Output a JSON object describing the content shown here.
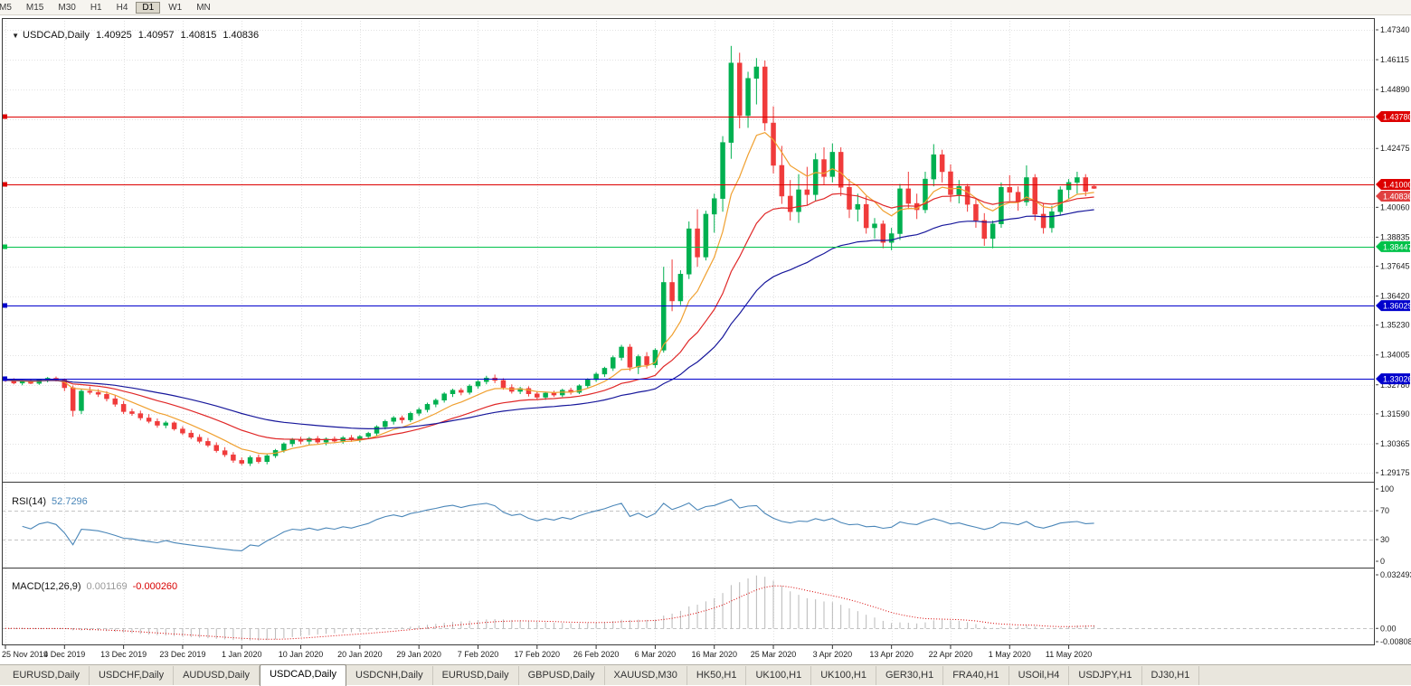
{
  "toolbar": {
    "timeframes": [
      "M5",
      "M15",
      "M30",
      "H1",
      "H4",
      "D1",
      "W1",
      "MN"
    ],
    "active": "D1"
  },
  "header": {
    "symbol": "USDCAD,Daily",
    "open": "1.40925",
    "high": "1.40957",
    "low": "1.40815",
    "close": "1.40836"
  },
  "indicators": {
    "rsi": {
      "label": "RSI(14)",
      "value": "52.7296",
      "scale": [
        {
          "label": "100",
          "value": 100
        },
        {
          "label": "70",
          "value": 70
        },
        {
          "label": "30",
          "value": 30
        },
        {
          "label": "0",
          "value": 0
        }
      ]
    },
    "macd": {
      "label": "MACD(12,26,9)",
      "value_main": "0.001169",
      "value_signal": "-0.000260",
      "scale": [
        {
          "label": "0.032493",
          "value": 0.032493
        },
        {
          "label": "0.00",
          "value": 0
        },
        {
          "label": "-0.00808",
          "value": -0.00808
        }
      ]
    }
  },
  "price_scale": {
    "labels": [
      "1.47340",
      "1.46115",
      "1.44890",
      "1.42475",
      "1.40060",
      "1.38835",
      "1.37645",
      "1.36420",
      "1.35230",
      "1.34005",
      "1.32780",
      "1.31590",
      "1.30365",
      "1.29175"
    ],
    "markers": [
      {
        "label": "1.43780",
        "value": 1.4378,
        "color": "#dd0000",
        "line": true
      },
      {
        "label": "1.41000",
        "value": 1.41,
        "color": "#dd0000",
        "line": true
      },
      {
        "label": "1.40836",
        "value": 1.40836,
        "color": "#e04040",
        "line": false,
        "type": "bid"
      },
      {
        "label": "1.38447",
        "value": 1.38447,
        "color": "#00c24a",
        "line": true
      },
      {
        "label": "1.36029",
        "value": 1.36029,
        "color": "#0000cc",
        "line": true
      },
      {
        "label": "1.33026",
        "value": 1.33026,
        "color": "#0000cc",
        "line": true
      }
    ]
  },
  "x_axis": {
    "labels": [
      "25 Nov 2019",
      "4 Dec 2019",
      "13 Dec 2019",
      "23 Dec 2019",
      "1 Jan 2020",
      "10 Jan 2020",
      "20 Jan 2020",
      "29 Jan 2020",
      "7 Feb 2020",
      "17 Feb 2020",
      "26 Feb 2020",
      "6 Mar 2020",
      "16 Mar 2020",
      "25 Mar 2020",
      "3 Apr 2020",
      "13 Apr 2020",
      "22 Apr 2020",
      "1 May 2020",
      "11 May 2020"
    ],
    "candles_per_label": 7
  },
  "tabs": {
    "items": [
      "EURUSD,Daily",
      "USDCHF,Daily",
      "AUDUSD,Daily",
      "USDCAD,Daily",
      "USDCNH,Daily",
      "EURUSD,Daily",
      "GBPUSD,Daily",
      "XAUUSD,M30",
      "HK50,H1",
      "UK100,H1",
      "UK100,H1",
      "GER30,H1",
      "FRA40,H1",
      "USOil,H4",
      "USDJPY,H1",
      "DJ30,H1"
    ],
    "active_index": 3
  },
  "colors": {
    "grid": "#e2e2e2",
    "panel_border": "#3a3a3a",
    "bull": "#00b050",
    "bear": "#f03b3b",
    "rsi_line": "#4a86b8",
    "rsi_level": "#c4c4c4",
    "macd_hist": "#b8b8b8",
    "macd_signal": "#d80000",
    "scale_text": "#1b1b1b",
    "marker_text": "#ffffff"
  },
  "chart_data": {
    "type": "candlestick",
    "symbol": "USDCAD",
    "timeframe": "Daily",
    "y_range": [
      1.29175,
      1.4734
    ],
    "grid_prices": [
      1.4734,
      1.46115,
      1.4489,
      1.43665,
      1.42475,
      1.41285,
      1.4006,
      1.38835,
      1.37645,
      1.3642,
      1.3523,
      1.34005,
      1.3278,
      1.3159,
      1.30365,
      1.29175
    ],
    "overlays": [
      {
        "name": "ma-fast-line",
        "type": "ema",
        "period": 8,
        "color": "#f0a030"
      },
      {
        "name": "ma-mid-line",
        "type": "ema",
        "period": 20,
        "color": "#e02828"
      },
      {
        "name": "ma-slow-line",
        "type": "ema",
        "period": 40,
        "color": "#17179b"
      }
    ],
    "rsi": {
      "period": 14,
      "range": [
        0,
        100
      ],
      "levels": [
        70,
        30
      ]
    },
    "macd": {
      "fast": 12,
      "slow": 26,
      "signal_period": 9,
      "range": [
        -0.00808,
        0.032493
      ]
    },
    "candles": [
      [
        1.3302,
        1.3312,
        1.329,
        1.3297
      ],
      [
        1.3297,
        1.3305,
        1.328,
        1.3285
      ],
      [
        1.3285,
        1.3298,
        1.3276,
        1.3292
      ],
      [
        1.3292,
        1.33,
        1.3281,
        1.3284
      ],
      [
        1.3284,
        1.3302,
        1.3278,
        1.3299
      ],
      [
        1.3299,
        1.331,
        1.3288,
        1.3305
      ],
      [
        1.3305,
        1.3312,
        1.3292,
        1.3298
      ],
      [
        1.3298,
        1.3304,
        1.3252,
        1.3266
      ],
      [
        1.3266,
        1.3275,
        1.3148,
        1.3172
      ],
      [
        1.3172,
        1.3262,
        1.3158,
        1.3252
      ],
      [
        1.3252,
        1.3271,
        1.3238,
        1.3247
      ],
      [
        1.3247,
        1.326,
        1.3228,
        1.3239
      ],
      [
        1.3239,
        1.3252,
        1.321,
        1.3221
      ],
      [
        1.3221,
        1.3235,
        1.3188,
        1.3198
      ],
      [
        1.3198,
        1.3212,
        1.3158,
        1.3168
      ],
      [
        1.3168,
        1.318,
        1.3151,
        1.316
      ],
      [
        1.316,
        1.3172,
        1.3132,
        1.3142
      ],
      [
        1.3142,
        1.3158,
        1.312,
        1.3128
      ],
      [
        1.3128,
        1.314,
        1.3102,
        1.3112
      ],
      [
        1.3112,
        1.313,
        1.31,
        1.3122
      ],
      [
        1.3122,
        1.3128,
        1.309,
        1.3097
      ],
      [
        1.3097,
        1.3108,
        1.3072,
        1.308
      ],
      [
        1.308,
        1.3092,
        1.3055,
        1.3063
      ],
      [
        1.3063,
        1.3075,
        1.3038,
        1.3046
      ],
      [
        1.3046,
        1.306,
        1.3022,
        1.303
      ],
      [
        1.303,
        1.3042,
        1.3,
        1.3008
      ],
      [
        1.3008,
        1.3022,
        1.2982,
        1.2991
      ],
      [
        1.2991,
        1.3002,
        1.2958,
        1.2968
      ],
      [
        1.2968,
        1.298,
        1.2948,
        1.2956
      ],
      [
        1.2956,
        1.2988,
        1.2945,
        1.298
      ],
      [
        1.298,
        1.2992,
        1.2955,
        1.2963
      ],
      [
        1.2963,
        1.2995,
        1.2952,
        1.2987
      ],
      [
        1.2987,
        1.3015,
        1.2978,
        1.3009
      ],
      [
        1.3009,
        1.3042,
        1.3,
        1.3036
      ],
      [
        1.3036,
        1.306,
        1.3024,
        1.3053
      ],
      [
        1.3053,
        1.3065,
        1.3035,
        1.3046
      ],
      [
        1.3046,
        1.3064,
        1.3032,
        1.3058
      ],
      [
        1.3058,
        1.3068,
        1.3036,
        1.3043
      ],
      [
        1.3043,
        1.3062,
        1.303,
        1.3056
      ],
      [
        1.3056,
        1.3066,
        1.3038,
        1.3047
      ],
      [
        1.3047,
        1.3068,
        1.3036,
        1.3061
      ],
      [
        1.3061,
        1.3072,
        1.3044,
        1.3052
      ],
      [
        1.3052,
        1.3072,
        1.3042,
        1.3066
      ],
      [
        1.3066,
        1.3085,
        1.3055,
        1.3079
      ],
      [
        1.3079,
        1.3112,
        1.3068,
        1.3106
      ],
      [
        1.3106,
        1.3135,
        1.3095,
        1.3128
      ],
      [
        1.3128,
        1.315,
        1.3115,
        1.3143
      ],
      [
        1.3143,
        1.3152,
        1.312,
        1.3134
      ],
      [
        1.3134,
        1.3168,
        1.3125,
        1.3161
      ],
      [
        1.3161,
        1.3185,
        1.315,
        1.3176
      ],
      [
        1.3176,
        1.3205,
        1.3165,
        1.3198
      ],
      [
        1.3198,
        1.3222,
        1.3186,
        1.3215
      ],
      [
        1.3215,
        1.3248,
        1.3205,
        1.3241
      ],
      [
        1.3241,
        1.3262,
        1.3228,
        1.3256
      ],
      [
        1.3256,
        1.3265,
        1.3235,
        1.3247
      ],
      [
        1.3247,
        1.328,
        1.3238,
        1.3273
      ],
      [
        1.3273,
        1.3298,
        1.3262,
        1.3291
      ],
      [
        1.3291,
        1.3315,
        1.328,
        1.3306
      ],
      [
        1.3306,
        1.332,
        1.3285,
        1.3296
      ],
      [
        1.3296,
        1.3305,
        1.3258,
        1.3267
      ],
      [
        1.3267,
        1.328,
        1.3242,
        1.3251
      ],
      [
        1.3251,
        1.327,
        1.324,
        1.3263
      ],
      [
        1.3263,
        1.3272,
        1.323,
        1.3241
      ],
      [
        1.3241,
        1.3252,
        1.3218,
        1.3227
      ],
      [
        1.3227,
        1.325,
        1.3216,
        1.3244
      ],
      [
        1.3244,
        1.3254,
        1.3228,
        1.3236
      ],
      [
        1.3236,
        1.3262,
        1.3228,
        1.3256
      ],
      [
        1.3256,
        1.3266,
        1.3238,
        1.3247
      ],
      [
        1.3247,
        1.328,
        1.324,
        1.3274
      ],
      [
        1.3274,
        1.3305,
        1.3266,
        1.3299
      ],
      [
        1.3299,
        1.333,
        1.329,
        1.3322
      ],
      [
        1.3322,
        1.3352,
        1.331,
        1.3346
      ],
      [
        1.3346,
        1.3398,
        1.3335,
        1.339
      ],
      [
        1.339,
        1.3442,
        1.3378,
        1.3433
      ],
      [
        1.3433,
        1.3445,
        1.3335,
        1.335
      ],
      [
        1.335,
        1.3402,
        1.3322,
        1.3394
      ],
      [
        1.3394,
        1.3412,
        1.3345,
        1.336
      ],
      [
        1.336,
        1.3428,
        1.3348,
        1.342
      ],
      [
        1.342,
        1.3762,
        1.341,
        1.3698
      ],
      [
        1.3698,
        1.3792,
        1.358,
        1.3622
      ],
      [
        1.3622,
        1.3748,
        1.3605,
        1.3732
      ],
      [
        1.3732,
        1.3948,
        1.3712,
        1.3918
      ],
      [
        1.3918,
        1.3998,
        1.3762,
        1.3802
      ],
      [
        1.3802,
        1.3992,
        1.3788,
        1.3978
      ],
      [
        1.3978,
        1.4062,
        1.3902,
        1.4042
      ],
      [
        1.4042,
        1.4298,
        1.3988,
        1.4272
      ],
      [
        1.4272,
        1.4668,
        1.4205,
        1.4598
      ],
      [
        1.4598,
        1.464,
        1.433,
        1.4382
      ],
      [
        1.4382,
        1.4562,
        1.4332,
        1.4535
      ],
      [
        1.4535,
        1.4618,
        1.4428,
        1.4582
      ],
      [
        1.4582,
        1.4608,
        1.432,
        1.4352
      ],
      [
        1.4352,
        1.442,
        1.4145,
        1.4178
      ],
      [
        1.4178,
        1.4258,
        1.402,
        1.4052
      ],
      [
        1.4052,
        1.4118,
        1.3952,
        1.3988
      ],
      [
        1.3988,
        1.4142,
        1.3942,
        1.4078
      ],
      [
        1.4078,
        1.4172,
        1.4015,
        1.4058
      ],
      [
        1.4058,
        1.4228,
        1.4032,
        1.4202
      ],
      [
        1.4202,
        1.4252,
        1.4098,
        1.4132
      ],
      [
        1.4132,
        1.4268,
        1.4108,
        1.4232
      ],
      [
        1.4232,
        1.4252,
        1.4052,
        1.4088
      ],
      [
        1.4088,
        1.4122,
        1.3962,
        1.3998
      ],
      [
        1.3998,
        1.4062,
        1.3948,
        1.4018
      ],
      [
        1.4018,
        1.4052,
        1.3898,
        1.3922
      ],
      [
        1.3922,
        1.3962,
        1.3878,
        1.3938
      ],
      [
        1.3938,
        1.3952,
        1.3838,
        1.3862
      ],
      [
        1.3862,
        1.3922,
        1.383,
        1.3898
      ],
      [
        1.3898,
        1.4102,
        1.3872,
        1.4082
      ],
      [
        1.4082,
        1.4152,
        1.3998,
        1.4022
      ],
      [
        1.4022,
        1.4062,
        1.3958,
        1.3996
      ],
      [
        1.3996,
        1.4152,
        1.3982,
        1.4122
      ],
      [
        1.4122,
        1.4265,
        1.4092,
        1.4222
      ],
      [
        1.4222,
        1.4242,
        1.4108,
        1.4152
      ],
      [
        1.4152,
        1.4182,
        1.4028,
        1.4058
      ],
      [
        1.4058,
        1.4118,
        1.4022,
        1.4092
      ],
      [
        1.4092,
        1.4102,
        1.3988,
        1.4018
      ],
      [
        1.4018,
        1.4042,
        1.3922,
        1.3952
      ],
      [
        1.3952,
        1.3982,
        1.3848,
        1.3878
      ],
      [
        1.3878,
        1.3952,
        1.3838,
        1.3938
      ],
      [
        1.3938,
        1.4108,
        1.3922,
        1.4088
      ],
      [
        1.4088,
        1.4138,
        1.4032,
        1.4068
      ],
      [
        1.4068,
        1.4092,
        1.3992,
        1.4028
      ],
      [
        1.4028,
        1.4178,
        1.4012,
        1.4128
      ],
      [
        1.4128,
        1.4142,
        1.3952,
        1.3978
      ],
      [
        1.3978,
        1.4022,
        1.3898,
        1.3922
      ],
      [
        1.3922,
        1.4012,
        1.3902,
        1.3988
      ],
      [
        1.3988,
        1.4092,
        1.3972,
        1.4078
      ],
      [
        1.4078,
        1.4122,
        1.4042,
        1.4108
      ],
      [
        1.4108,
        1.4152,
        1.4062,
        1.4128
      ],
      [
        1.4128,
        1.4142,
        1.4052,
        1.4072
      ],
      [
        1.40925,
        1.40957,
        1.40815,
        1.40836
      ]
    ]
  }
}
